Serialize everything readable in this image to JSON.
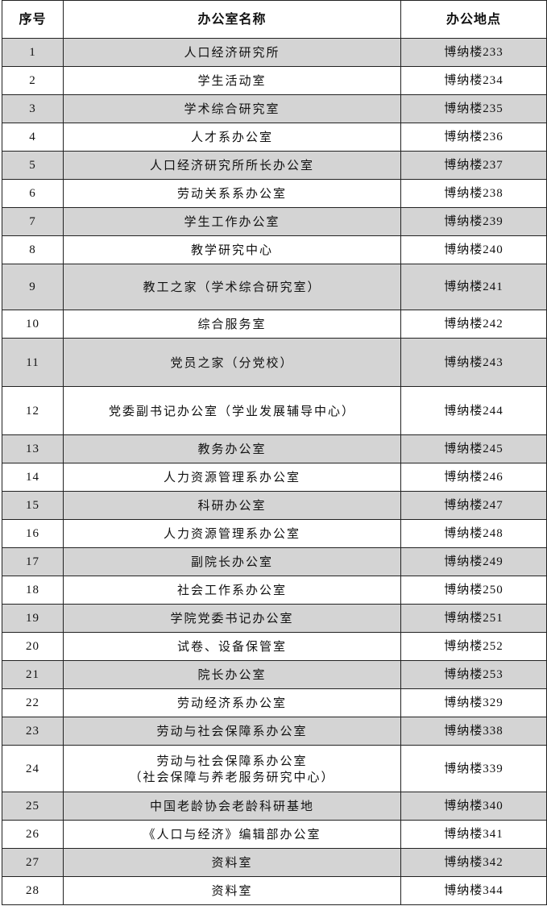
{
  "table": {
    "headers": [
      "序号",
      "办公室名称",
      "办公地点"
    ],
    "rows": [
      {
        "no": "1",
        "name": "人口经济研究所",
        "location": "博纳楼233"
      },
      {
        "no": "2",
        "name": "学生活动室",
        "location": "博纳楼234"
      },
      {
        "no": "3",
        "name": "学术综合研究室",
        "location": "博纳楼235"
      },
      {
        "no": "4",
        "name": "人才系办公室",
        "location": "博纳楼236"
      },
      {
        "no": "5",
        "name": "人口经济研究所所长办公室",
        "location": "博纳楼237"
      },
      {
        "no": "6",
        "name": "劳动关系系办公室",
        "location": "博纳楼238"
      },
      {
        "no": "7",
        "name": "学生工作办公室",
        "location": "博纳楼239"
      },
      {
        "no": "8",
        "name": "教学研究中心",
        "location": "博纳楼240"
      },
      {
        "no": "9",
        "name": "教工之家（学术综合研究室）",
        "location": "博纳楼241"
      },
      {
        "no": "10",
        "name": "综合服务室",
        "location": "博纳楼242"
      },
      {
        "no": "11",
        "name": "党员之家（分党校）",
        "location": "博纳楼243"
      },
      {
        "no": "12",
        "name": "党委副书记办公室（学业发展辅导中心）",
        "location": "博纳楼244"
      },
      {
        "no": "13",
        "name": "教务办公室",
        "location": "博纳楼245"
      },
      {
        "no": "14",
        "name": "人力资源管理系办公室",
        "location": "博纳楼246"
      },
      {
        "no": "15",
        "name": "科研办公室",
        "location": "博纳楼247"
      },
      {
        "no": "16",
        "name": "人力资源管理系办公室",
        "location": "博纳楼248"
      },
      {
        "no": "17",
        "name": "副院长办公室",
        "location": "博纳楼249"
      },
      {
        "no": "18",
        "name": "社会工作系办公室",
        "location": "博纳楼250"
      },
      {
        "no": "19",
        "name": "学院党委书记办公室",
        "location": "博纳楼251"
      },
      {
        "no": "20",
        "name": "试卷、设备保管室",
        "location": "博纳楼252"
      },
      {
        "no": "21",
        "name": "院长办公室",
        "location": "博纳楼253"
      },
      {
        "no": "22",
        "name": "劳动经济系办公室",
        "location": "博纳楼329"
      },
      {
        "no": "23",
        "name": "劳动与社会保障系办公室",
        "location": "博纳楼338"
      },
      {
        "no": "24",
        "name": "劳动与社会保障系办公室\n（社会保障与养老服务研究中心）",
        "location": "博纳楼339"
      },
      {
        "no": "25",
        "name": "中国老龄协会老龄科研基地",
        "location": "博纳楼340"
      },
      {
        "no": "26",
        "name": "《人口与经济》编辑部办公室",
        "location": "博纳楼341"
      },
      {
        "no": "27",
        "name": "资料室",
        "location": "博纳楼342"
      },
      {
        "no": "28",
        "name": "资料室",
        "location": "博纳楼344"
      }
    ],
    "alternate_row_color": "#d4d4d4"
  }
}
